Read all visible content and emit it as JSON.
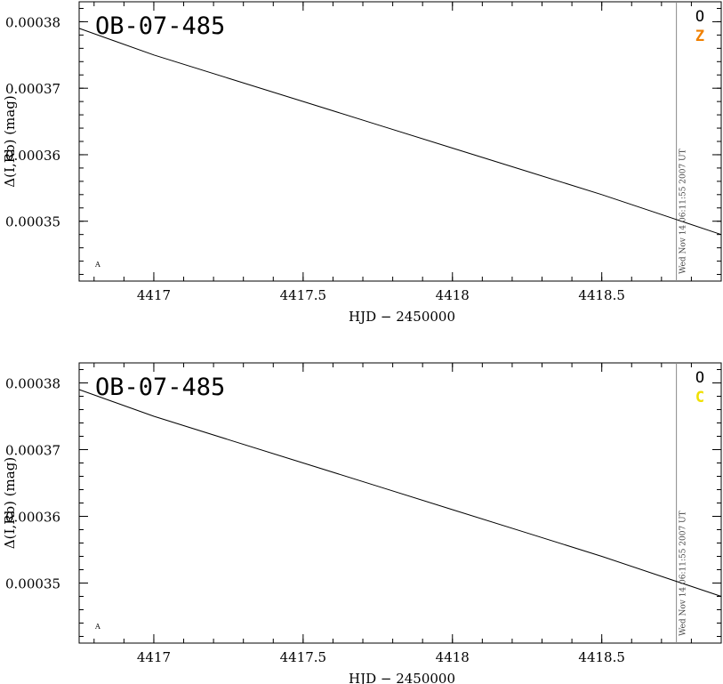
{
  "chart_data": [
    {
      "type": "line",
      "title": "OB-07-485",
      "xlabel": "HJD − 2450000",
      "ylabel": "Δ(I,Rb) (mag)",
      "xlim": [
        4416.75,
        4418.9
      ],
      "ylim": [
        0.000341,
        0.000383
      ],
      "xticks": [
        4417,
        4417.5,
        4418,
        4418.5
      ],
      "xtick_labels": [
        "4417",
        "4417.5",
        "4418",
        "4418.5"
      ],
      "yticks": [
        0.00035,
        0.00036,
        0.00037,
        0.00038
      ],
      "ytick_labels": [
        "0.00035",
        "0.00036",
        "0.00037",
        "0.00038"
      ],
      "series": [
        {
          "x": [
            4416.75,
            4417.0,
            4417.25,
            4417.5,
            4417.75,
            4418.0,
            4418.25,
            4418.5,
            4418.9
          ],
          "values": [
            0.000379,
            0.000375,
            0.0003715,
            0.000368,
            0.0003645,
            0.000361,
            0.0003575,
            0.000354,
            0.000348
          ]
        }
      ],
      "vline_x": 4418.75,
      "timestamp": "Wed Nov 14 06:11:55 2007 UT",
      "corner_label_1": "O",
      "corner_label_2": "Z",
      "corner_label_2_color": "#f08000",
      "marker_label": "A",
      "grid": false
    },
    {
      "type": "line",
      "title": "OB-07-485",
      "xlabel": "HJD − 2450000",
      "ylabel": "Δ(I,Rb) (mag)",
      "xlim": [
        4416.75,
        4418.9
      ],
      "ylim": [
        0.000341,
        0.000383
      ],
      "xticks": [
        4417,
        4417.5,
        4418,
        4418.5
      ],
      "xtick_labels": [
        "4417",
        "4417.5",
        "4418",
        "4418.5"
      ],
      "yticks": [
        0.00035,
        0.00036,
        0.00037,
        0.00038
      ],
      "ytick_labels": [
        "0.00035",
        "0.00036",
        "0.00037",
        "0.00038"
      ],
      "series": [
        {
          "x": [
            4416.75,
            4417.0,
            4417.25,
            4417.5,
            4417.75,
            4418.0,
            4418.25,
            4418.5,
            4418.9
          ],
          "values": [
            0.000379,
            0.000375,
            0.0003715,
            0.000368,
            0.0003645,
            0.000361,
            0.0003575,
            0.000354,
            0.000348
          ]
        }
      ],
      "vline_x": 4418.75,
      "timestamp": "Wed Nov 14 06:11:55 2007 UT",
      "corner_label_1": "O",
      "corner_label_2": "C",
      "corner_label_2_color": "#f0e000",
      "marker_label": "A",
      "grid": false
    }
  ]
}
